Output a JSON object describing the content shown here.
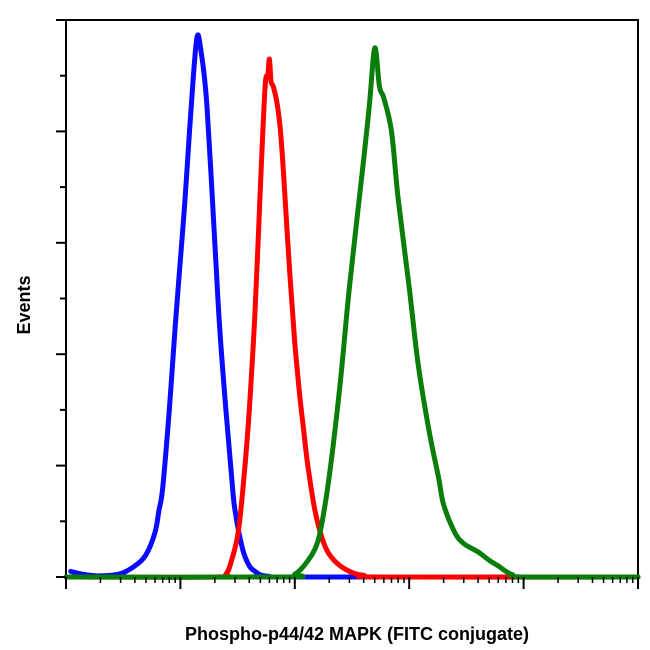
{
  "chart_data": {
    "type": "line",
    "title": "",
    "xlabel": "Phospho-p44/42 MAPK (FITC conjugate)",
    "ylabel": "Events",
    "x_scale": "log",
    "xlim": [
      1,
      100000
    ],
    "ylim": [
      0,
      100
    ],
    "grid": false,
    "legend": "none",
    "series": [
      {
        "color": "#0a0aff",
        "x": [
          1.1,
          1.4,
          2,
          3,
          4,
          5,
          6,
          6.5,
          7,
          8,
          9,
          10,
          11,
          12,
          13,
          14,
          15,
          17,
          20,
          22,
          25,
          28,
          30,
          35,
          40,
          45,
          50,
          60,
          80,
          100000
        ],
        "y": [
          1,
          0.5,
          0.2,
          0.6,
          2,
          4,
          8,
          12,
          16,
          30,
          45,
          57,
          68,
          80,
          90,
          97,
          95,
          85,
          60,
          45,
          30,
          18,
          12,
          5,
          2,
          1,
          0.4,
          0.1,
          0,
          0
        ]
      },
      {
        "color": "#ff0000",
        "x": [
          1,
          20,
          25,
          28,
          32,
          36,
          40,
          45,
          50,
          55,
          58,
          60,
          62,
          65,
          70,
          75,
          80,
          90,
          100,
          110,
          120,
          130,
          150,
          180,
          220,
          300,
          400,
          600,
          100000
        ],
        "y": [
          0,
          0,
          0.5,
          3,
          8,
          18,
          30,
          48,
          70,
          88,
          90,
          93,
          89,
          88,
          85,
          80,
          72,
          55,
          42,
          33,
          26,
          20,
          12,
          6,
          3,
          1,
          0.3,
          0,
          0
        ]
      },
      {
        "color": "#0a7d0a",
        "x": [
          1,
          80,
          100,
          120,
          150,
          170,
          200,
          250,
          300,
          400,
          450,
          500,
          550,
          600,
          700,
          800,
          1000,
          1200,
          1500,
          1800,
          2000,
          2500,
          3000,
          4000,
          5000,
          6000,
          7000,
          8000,
          10000,
          100000
        ],
        "y": [
          0,
          0,
          0.5,
          2,
          5,
          9,
          18,
          35,
          52,
          75,
          85,
          95,
          88,
          86,
          80,
          68,
          52,
          38,
          26,
          18,
          13,
          8,
          6,
          4.5,
          3,
          2,
          1,
          0.4,
          0,
          0
        ]
      }
    ]
  }
}
